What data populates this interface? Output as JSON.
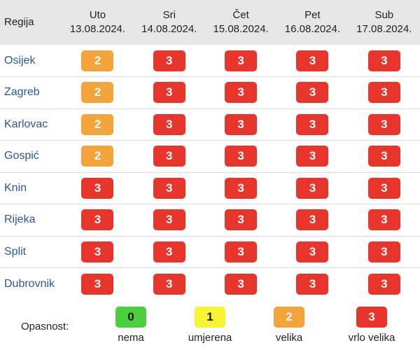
{
  "header": {
    "region_label": "Regija",
    "days": [
      {
        "day": "Uto",
        "date": "13.08.2024."
      },
      {
        "day": "Sri",
        "date": "14.08.2024."
      },
      {
        "day": "Čet",
        "date": "15.08.2024."
      },
      {
        "day": "Pet",
        "date": "16.08.2024."
      },
      {
        "day": "Sub",
        "date": "17.08.2024."
      }
    ]
  },
  "rows": [
    {
      "region": "Osijek",
      "levels": [
        "2",
        "3",
        "3",
        "3",
        "3"
      ]
    },
    {
      "region": "Zagreb",
      "levels": [
        "2",
        "3",
        "3",
        "3",
        "3"
      ]
    },
    {
      "region": "Karlovac",
      "levels": [
        "2",
        "3",
        "3",
        "3",
        "3"
      ]
    },
    {
      "region": "Gospić",
      "levels": [
        "2",
        "3",
        "3",
        "3",
        "3"
      ]
    },
    {
      "region": "Knin",
      "levels": [
        "3",
        "3",
        "3",
        "3",
        "3"
      ]
    },
    {
      "region": "Rijeka",
      "levels": [
        "3",
        "3",
        "3",
        "3",
        "3"
      ]
    },
    {
      "region": "Split",
      "levels": [
        "3",
        "3",
        "3",
        "3",
        "3"
      ]
    },
    {
      "region": "Dubrovnik",
      "levels": [
        "3",
        "3",
        "3",
        "3",
        "3"
      ]
    }
  ],
  "legend": {
    "label": "Opasnost:",
    "items": [
      {
        "value": "0",
        "caption": "nema",
        "color": "#4ccf3f"
      },
      {
        "value": "1",
        "caption": "umjerena",
        "color": "#f6f433"
      },
      {
        "value": "2",
        "caption": "velika",
        "color": "#f2a33a"
      },
      {
        "value": "3",
        "caption": "vrlo velika",
        "color": "#e8352c"
      }
    ]
  },
  "colors": {
    "header_bg": "#e6e6e6",
    "region_text": "#2b5797",
    "level_0": "#4ccf3f",
    "level_1": "#f6f433",
    "level_2": "#f2a33a",
    "level_3": "#e8352c"
  }
}
